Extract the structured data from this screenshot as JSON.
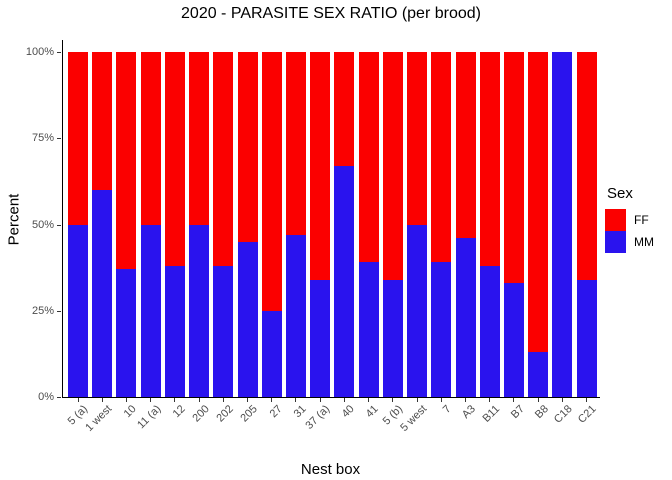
{
  "chart_data": {
    "type": "bar",
    "stacked": true,
    "percent_scale": true,
    "title": "2020 - PARASITE SEX RATIO (per brood)",
    "xlabel": "Nest box",
    "ylabel": "Percent",
    "legend_title": "Sex",
    "legend_position": "right",
    "grid": false,
    "ylim": [
      0,
      100
    ],
    "yticks": [
      0,
      25,
      50,
      75,
      100
    ],
    "ytick_labels": [
      "0%",
      "25%",
      "50%",
      "75%",
      "100%"
    ],
    "categories": [
      "5 (a)",
      "1 west",
      "10",
      "11 (a)",
      "12",
      "200",
      "202",
      "205",
      "27",
      "31",
      "37 (a)",
      "40",
      "41",
      "5 (b)",
      "5 west",
      "7",
      "A3",
      "B11",
      "B7",
      "B8",
      "C18",
      "C21"
    ],
    "series": [
      {
        "name": "FF",
        "color": "#fb0000",
        "values": [
          50,
          40,
          63,
          50,
          62,
          50,
          62,
          55,
          75,
          53,
          66,
          33,
          61,
          66,
          50,
          61,
          54,
          62,
          67,
          87,
          0,
          66
        ]
      },
      {
        "name": "MM",
        "color": "#2a13ee",
        "values": [
          50,
          60,
          37,
          50,
          38,
          50,
          38,
          45,
          25,
          47,
          34,
          67,
          39,
          34,
          50,
          39,
          46,
          38,
          33,
          13,
          100,
          34
        ]
      }
    ],
    "colors": {
      "axis_text": "#4d4d4d",
      "axis_line": "#000000",
      "title_text": "#000000",
      "background": "#ffffff"
    }
  }
}
